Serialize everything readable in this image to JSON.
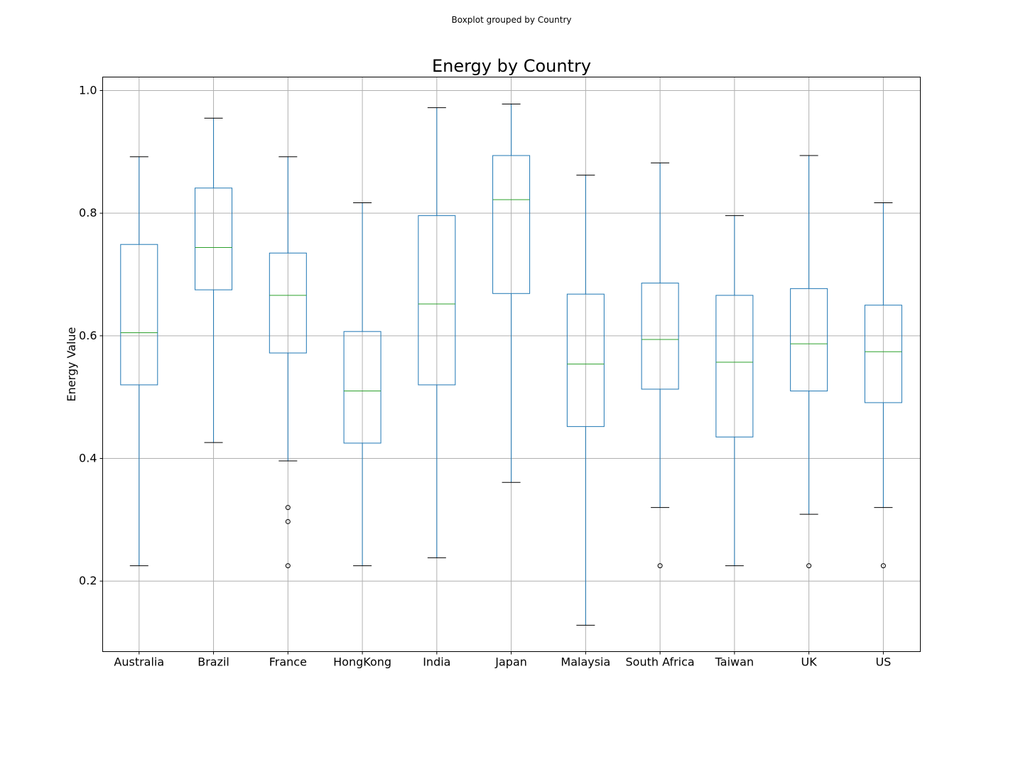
{
  "chart_data": {
    "type": "boxplot",
    "suptitle": "Boxplot grouped by Country",
    "title": "Energy by Country",
    "xlabel": "",
    "ylabel": "Energy Value",
    "ylim": [
      0.085,
      1.022
    ],
    "yticks": [
      "0.2",
      "0.4",
      "0.6",
      "0.8",
      "1.0"
    ],
    "grid": true,
    "colors": {
      "box": "#1f77b4",
      "median": "#2ca02c",
      "whisker": "#1f77b4",
      "cap": "#000000",
      "flier": "#000000",
      "grid": "#b0b0b0"
    },
    "categories": [
      "Australia",
      "Brazil",
      "France",
      "HongKong",
      "India",
      "Japan",
      "Malaysia",
      "South Africa",
      "Taiwan",
      "UK",
      "US"
    ],
    "boxes": [
      {
        "category": "Australia",
        "whislo": 0.225,
        "q1": 0.52,
        "med": 0.605,
        "q3": 0.749,
        "whishi": 0.892,
        "fliers": []
      },
      {
        "category": "Brazil",
        "whislo": 0.426,
        "q1": 0.675,
        "med": 0.744,
        "q3": 0.841,
        "whishi": 0.955,
        "fliers": []
      },
      {
        "category": "France",
        "whislo": 0.396,
        "q1": 0.572,
        "med": 0.666,
        "q3": 0.735,
        "whishi": 0.892,
        "fliers": [
          0.32,
          0.297,
          0.225
        ]
      },
      {
        "category": "HongKong",
        "whislo": 0.225,
        "q1": 0.425,
        "med": 0.51,
        "q3": 0.607,
        "whishi": 0.817,
        "fliers": []
      },
      {
        "category": "India",
        "whislo": 0.238,
        "q1": 0.52,
        "med": 0.652,
        "q3": 0.796,
        "whishi": 0.972,
        "fliers": []
      },
      {
        "category": "Japan",
        "whislo": 0.361,
        "q1": 0.669,
        "med": 0.822,
        "q3": 0.894,
        "whishi": 0.978,
        "fliers": []
      },
      {
        "category": "Malaysia",
        "whislo": 0.128,
        "q1": 0.452,
        "med": 0.554,
        "q3": 0.668,
        "whishi": 0.862,
        "fliers": []
      },
      {
        "category": "South Africa",
        "whislo": 0.32,
        "q1": 0.513,
        "med": 0.594,
        "q3": 0.686,
        "whishi": 0.882,
        "fliers": [
          0.225
        ]
      },
      {
        "category": "Taiwan",
        "whislo": 0.225,
        "q1": 0.435,
        "med": 0.557,
        "q3": 0.666,
        "whishi": 0.796,
        "fliers": []
      },
      {
        "category": "UK",
        "whislo": 0.309,
        "q1": 0.51,
        "med": 0.587,
        "q3": 0.677,
        "whishi": 0.894,
        "fliers": [
          0.225
        ]
      },
      {
        "category": "US",
        "whislo": 0.32,
        "q1": 0.491,
        "med": 0.574,
        "q3": 0.65,
        "whishi": 0.817,
        "fliers": [
          0.225
        ]
      }
    ]
  }
}
